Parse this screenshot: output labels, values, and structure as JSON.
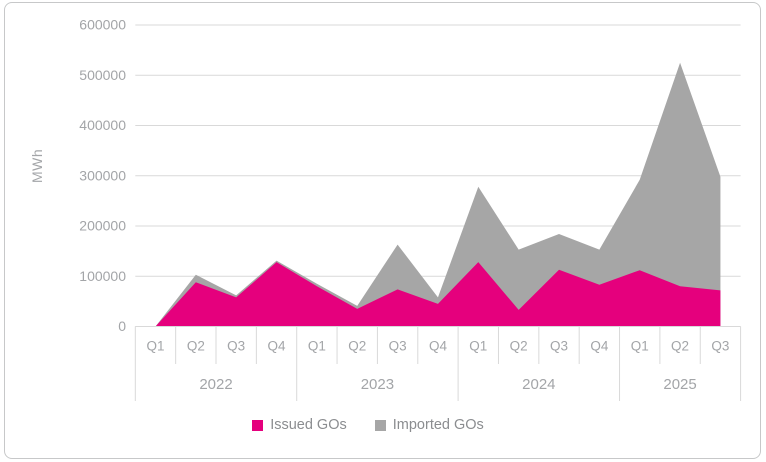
{
  "chart": {
    "y_axis_title": "MWh",
    "colors": {
      "issued": "#e5007d",
      "imported": "#a6a6a6",
      "grid": "#d9d9d9",
      "axis_text": "#a3a5a8",
      "legend_text": "#8b8d90",
      "frame_border": "#c7c8c9",
      "background": "#ffffff"
    }
  },
  "chart_data": {
    "type": "area",
    "stacked": true,
    "title": "",
    "xlabel": "",
    "ylabel": "MWh",
    "ylim": [
      0,
      600000
    ],
    "ytick_step": 100000,
    "ytick_labels": [
      "0",
      "100000",
      "200000",
      "300000",
      "400000",
      "500000",
      "600000"
    ],
    "grid": true,
    "legend_position": "bottom",
    "categories": [
      "Q1",
      "Q2",
      "Q3",
      "Q4",
      "Q1",
      "Q2",
      "Q3",
      "Q4",
      "Q1",
      "Q2",
      "Q3",
      "Q4",
      "Q1",
      "Q2",
      "Q3"
    ],
    "year_groups": [
      {
        "label": "2022",
        "count": 4
      },
      {
        "label": "2023",
        "count": 4
      },
      {
        "label": "2024",
        "count": 4
      },
      {
        "label": "2025",
        "count": 3
      }
    ],
    "series": [
      {
        "name": "Issued GOs",
        "color": "#e5007d",
        "values": [
          0,
          88000,
          58000,
          128000,
          80000,
          35000,
          74000,
          45000,
          128000,
          33000,
          113000,
          83000,
          112000,
          80000,
          72000
        ]
      },
      {
        "name": "Imported GOs",
        "color": "#a6a6a6",
        "values": [
          0,
          15000,
          4000,
          3000,
          5000,
          6000,
          89000,
          13000,
          150000,
          120000,
          71000,
          70000,
          180000,
          445000,
          226000
        ]
      }
    ]
  }
}
